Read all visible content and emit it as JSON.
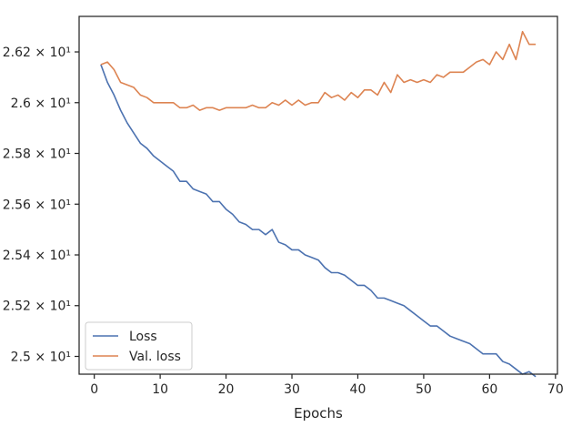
{
  "chart_data": {
    "type": "line",
    "title": "",
    "xlabel": "Epochs",
    "ylabel": "",
    "xlim": [
      -2.3,
      70.3
    ],
    "ylim": [
      24.93,
      26.34
    ],
    "xticks": [
      0,
      10,
      20,
      30,
      40,
      50,
      60,
      70
    ],
    "xtick_labels": [
      "0",
      "10",
      "20",
      "30",
      "40",
      "50",
      "60",
      "70"
    ],
    "yticks": [
      25.0,
      25.2,
      25.4,
      25.6,
      25.8,
      26.0,
      26.2
    ],
    "ytick_labels": [
      "2.5 × 10¹",
      "2.52 × 10¹",
      "2.54 × 10¹",
      "2.56 × 10¹",
      "2.58 × 10¹",
      "2.6 × 10¹",
      "2.62 × 10¹"
    ],
    "grid": false,
    "legend_position": "lower-left",
    "x": [
      1,
      2,
      3,
      4,
      5,
      6,
      7,
      8,
      9,
      10,
      11,
      12,
      13,
      14,
      15,
      16,
      17,
      18,
      19,
      20,
      21,
      22,
      23,
      24,
      25,
      26,
      27,
      28,
      29,
      30,
      31,
      32,
      33,
      34,
      35,
      36,
      37,
      38,
      39,
      40,
      41,
      42,
      43,
      44,
      45,
      46,
      47,
      48,
      49,
      50,
      51,
      52,
      53,
      54,
      55,
      56,
      57,
      58,
      59,
      60,
      61,
      62,
      63,
      64,
      65,
      66,
      67
    ],
    "series": [
      {
        "name": "Loss",
        "color": "#4c72b0",
        "values": [
          26.15,
          26.08,
          26.03,
          25.97,
          25.92,
          25.88,
          25.84,
          25.82,
          25.79,
          25.77,
          25.75,
          25.73,
          25.69,
          25.69,
          25.66,
          25.65,
          25.64,
          25.61,
          25.61,
          25.58,
          25.56,
          25.53,
          25.52,
          25.5,
          25.5,
          25.48,
          25.5,
          25.45,
          25.44,
          25.42,
          25.42,
          25.4,
          25.39,
          25.38,
          25.35,
          25.33,
          25.33,
          25.32,
          25.3,
          25.28,
          25.28,
          25.26,
          25.23,
          25.23,
          25.22,
          25.21,
          25.2,
          25.18,
          25.16,
          25.14,
          25.12,
          25.12,
          25.1,
          25.08,
          25.07,
          25.06,
          25.05,
          25.03,
          25.01,
          25.01,
          25.01,
          24.98,
          24.97,
          24.95,
          24.93,
          24.94,
          24.92
        ]
      },
      {
        "name": "Val. loss",
        "color": "#dd8452",
        "values": [
          26.15,
          26.16,
          26.13,
          26.08,
          26.07,
          26.06,
          26.03,
          26.02,
          26.0,
          26.0,
          26.0,
          26.0,
          25.98,
          25.98,
          25.99,
          25.97,
          25.98,
          25.98,
          25.97,
          25.98,
          25.98,
          25.98,
          25.98,
          25.99,
          25.98,
          25.98,
          26.0,
          25.99,
          26.01,
          25.99,
          26.01,
          25.99,
          26.0,
          26.0,
          26.04,
          26.02,
          26.03,
          26.01,
          26.04,
          26.02,
          26.05,
          26.05,
          26.03,
          26.08,
          26.04,
          26.11,
          26.08,
          26.09,
          26.08,
          26.09,
          26.08,
          26.11,
          26.1,
          26.12,
          26.12,
          26.12,
          26.14,
          26.16,
          26.17,
          26.15,
          26.2,
          26.17,
          26.23,
          26.17,
          26.28,
          26.23,
          26.23
        ]
      }
    ]
  }
}
